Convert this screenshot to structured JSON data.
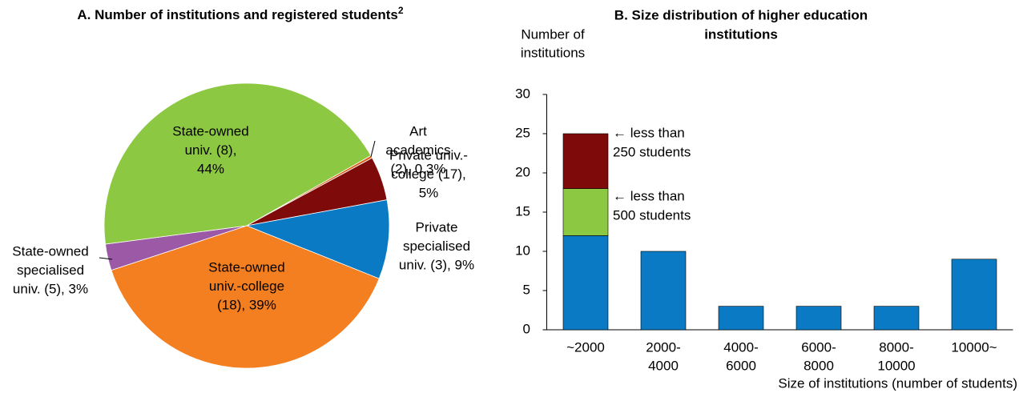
{
  "chart_data": [
    {
      "type": "pie",
      "title": "A. Number of institutions and registered students",
      "title_superscript": "2",
      "categories": [
        [
          "Art",
          "academics",
          "(2), 0.3%"
        ],
        [
          "Private univ.-",
          "college (17),",
          "5%"
        ],
        [
          "Private",
          "specialised",
          "univ. (3), 9%"
        ],
        [
          "State-owned",
          "univ.-college",
          "(18), 39%"
        ],
        [
          "State-owned",
          "specialised",
          "univ. (5), 3%"
        ],
        [
          "State-owned",
          "univ. (8),",
          "44%"
        ]
      ],
      "values": [
        0.3,
        5,
        9,
        39,
        3,
        44
      ],
      "colors": [
        "#e0601c",
        "#7f0a0a",
        "#0a7ac4",
        "#f47f20",
        "#9b59a6",
        "#8cc841"
      ]
    },
    {
      "type": "bar",
      "title": [
        "B. Size distribution of higher education",
        "institutions"
      ],
      "ylabel": [
        "Number of",
        "institutions"
      ],
      "xlabel": "Size of institutions (number of students)",
      "categories": [
        [
          "~2000"
        ],
        [
          "2000-",
          "4000"
        ],
        [
          "4000-",
          "6000"
        ],
        [
          "6000-",
          "8000"
        ],
        [
          "8000-",
          "10000"
        ],
        [
          "10000~"
        ]
      ],
      "series": [
        {
          "color": "#0a7ac4",
          "values": [
            12,
            10,
            3,
            3,
            3,
            9
          ]
        },
        {
          "color": "#8cc841",
          "values": [
            6,
            null,
            null,
            null,
            null,
            null
          ]
        },
        {
          "color": "#7f0a0a",
          "values": [
            7,
            null,
            null,
            null,
            null,
            null
          ]
        }
      ],
      "stacked": true,
      "ylim": [
        0,
        30
      ],
      "yticks": [
        0,
        5,
        10,
        15,
        20,
        25,
        30
      ],
      "annotations": [
        [
          "← less than",
          "250 students"
        ],
        [
          "← less than",
          "500 students"
        ]
      ]
    }
  ]
}
